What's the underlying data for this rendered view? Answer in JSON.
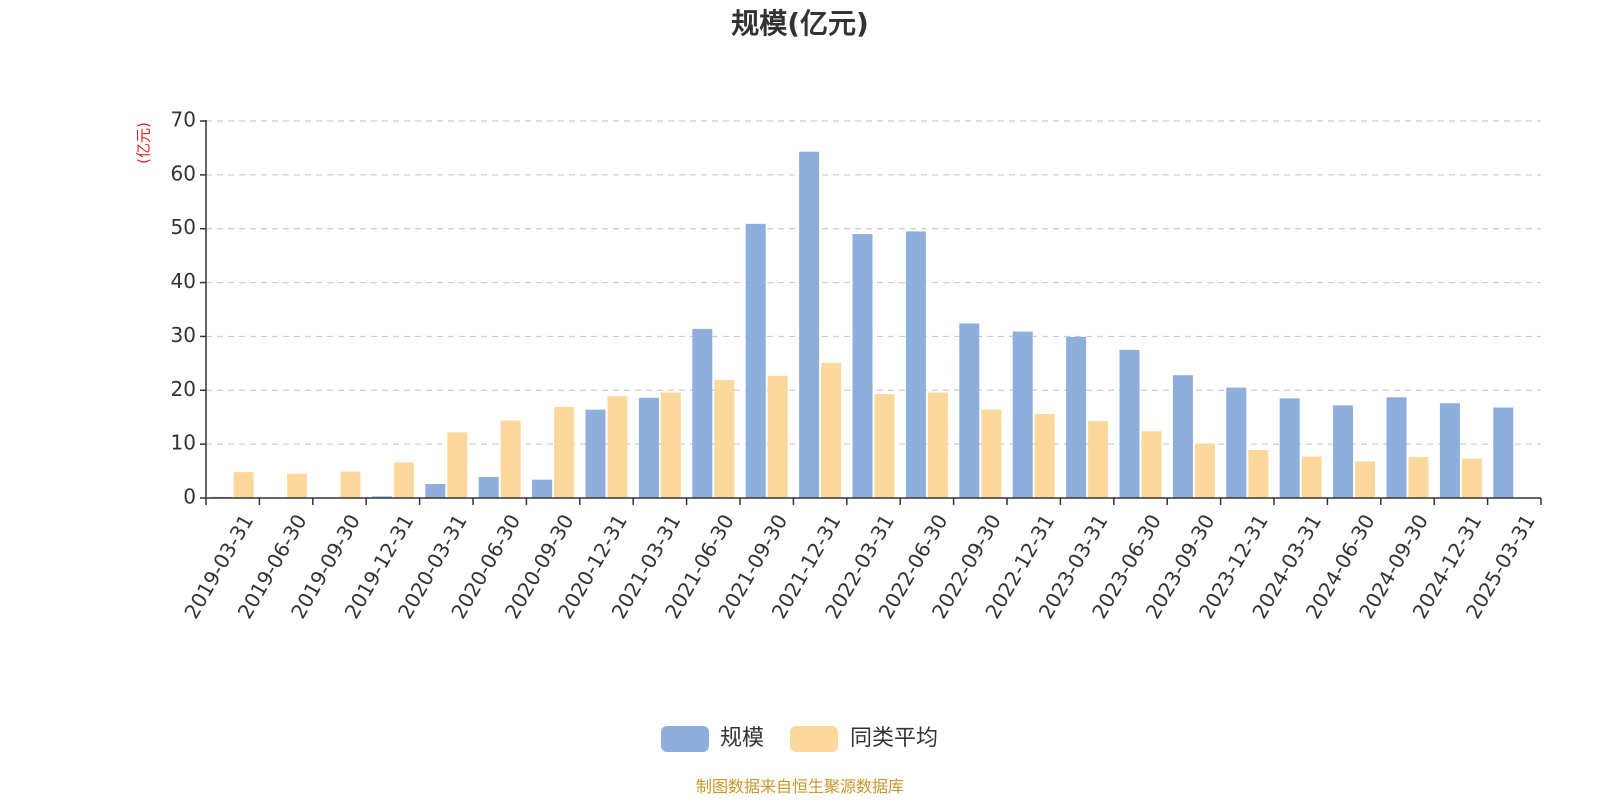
{
  "chart_data": {
    "type": "bar",
    "title": "规模(亿元)",
    "ylabel": "(亿元)",
    "xlabel": "",
    "ylim": [
      0,
      70
    ],
    "yticks": [
      0,
      10,
      20,
      30,
      40,
      50,
      60,
      70
    ],
    "grid": true,
    "legend_position": "bottom-center",
    "categories": [
      "2019-03-31",
      "2019-06-30",
      "2019-09-30",
      "2019-12-31",
      "2020-03-31",
      "2020-06-30",
      "2020-09-30",
      "2020-12-31",
      "2021-03-31",
      "2021-06-30",
      "2021-09-30",
      "2021-12-31",
      "2022-03-31",
      "2022-06-30",
      "2022-09-30",
      "2022-12-31",
      "2023-03-31",
      "2023-06-30",
      "2023-09-30",
      "2023-12-31",
      "2024-03-31",
      "2024-06-30",
      "2024-09-30",
      "2024-12-31",
      "2025-03-31"
    ],
    "series": [
      {
        "name": "规模",
        "color": "#8eaedb",
        "values": [
          0.2,
          0.1,
          0.1,
          0.3,
          2.6,
          3.9,
          3.4,
          16.4,
          18.6,
          31.4,
          50.9,
          64.3,
          49.0,
          49.5,
          32.4,
          30.9,
          29.9,
          27.5,
          22.8,
          20.5,
          18.5,
          17.2,
          18.7,
          17.6,
          16.8
        ]
      },
      {
        "name": "同类平均",
        "color": "#fdd89c",
        "values": [
          4.8,
          4.5,
          4.9,
          6.6,
          12.2,
          14.4,
          16.9,
          18.9,
          19.6,
          21.9,
          22.7,
          25.1,
          19.3,
          19.6,
          16.4,
          15.6,
          14.3,
          12.4,
          10.1,
          8.9,
          7.7,
          6.8,
          7.6,
          7.3,
          null
        ]
      }
    ]
  },
  "axis_label_color": "#e02020",
  "source_text": "制图数据来自恒生聚源数据库",
  "source_color": "#c8962a"
}
